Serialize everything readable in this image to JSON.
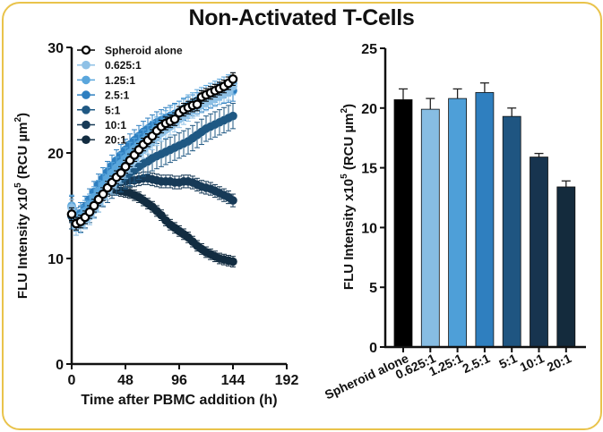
{
  "title": "Non-Activated T-Cells",
  "chart_data": [
    {
      "type": "line",
      "xlabel": "Time after PBMC addition (h)",
      "ylabel": "FLU Intensity x10^5 (RCU µm^2)",
      "ylabel_parts": {
        "main": "FLU Intensity x10",
        "exp": "5",
        "unit": " (RCU µm",
        "unit_exp": "2",
        "close": ")"
      },
      "xlim": [
        0,
        192
      ],
      "ylim": [
        0,
        30
      ],
      "xticks": [
        "0",
        "48",
        "96",
        "144",
        "192"
      ],
      "yticks": [
        "0",
        "10",
        "20",
        "30"
      ],
      "legend_position": "top-left",
      "x": [
        0,
        4,
        8,
        12,
        16,
        20,
        24,
        28,
        32,
        36,
        40,
        44,
        48,
        52,
        56,
        60,
        64,
        68,
        72,
        76,
        80,
        84,
        88,
        92,
        96,
        100,
        104,
        108,
        112,
        116,
        120,
        124,
        128,
        132,
        136,
        140,
        144
      ],
      "series": [
        {
          "name": "Spheroid alone",
          "color": "#000000",
          "marker": "open-circle",
          "error": 0.6,
          "values": [
            14.2,
            13.3,
            13.5,
            13.9,
            14.4,
            15.0,
            15.6,
            16.1,
            16.7,
            17.2,
            17.7,
            18.1,
            18.7,
            19.3,
            19.8,
            20.3,
            20.8,
            21.2,
            21.6,
            22.1,
            22.5,
            22.8,
            23.0,
            23.2,
            23.8,
            24.1,
            24.3,
            24.5,
            24.6,
            25.3,
            25.5,
            25.7,
            25.9,
            26.1,
            26.3,
            26.6,
            27.0
          ]
        },
        {
          "name": "0.625:1",
          "color": "#8fc1e6",
          "marker": "filled-circle",
          "error": 0.8,
          "values": [
            14.8,
            13.0,
            13.2,
            13.6,
            14.0,
            14.6,
            15.2,
            15.8,
            16.4,
            16.9,
            17.4,
            17.9,
            18.4,
            18.9,
            19.4,
            19.9,
            20.3,
            20.7,
            21.1,
            21.5,
            21.9,
            22.2,
            22.5,
            22.8,
            23.2,
            23.5,
            23.8,
            24.1,
            24.3,
            24.6,
            24.8,
            25.0,
            25.2,
            25.4,
            25.6,
            25.8,
            26.3
          ]
        },
        {
          "name": "1.25:1",
          "color": "#5aa6dc",
          "marker": "filled-circle",
          "error": 1.0,
          "values": [
            15.0,
            13.6,
            14.0,
            14.5,
            15.1,
            15.8,
            16.4,
            17.0,
            17.6,
            18.1,
            18.6,
            19.0,
            19.5,
            20.0,
            20.4,
            20.8,
            21.2,
            21.6,
            22.0,
            22.4,
            22.7,
            23.0,
            23.3,
            23.6,
            23.9,
            24.2,
            24.5,
            24.7,
            25.0,
            25.2,
            25.4,
            25.6,
            25.8,
            26.0,
            26.2,
            26.4,
            26.6
          ]
        },
        {
          "name": "2.5:1",
          "color": "#2e7fc0",
          "marker": "filled-circle",
          "error": 1.0,
          "values": [
            14.9,
            13.8,
            14.3,
            14.9,
            15.6,
            16.3,
            17.0,
            17.6,
            18.2,
            18.8,
            19.3,
            19.8,
            20.3,
            20.8,
            21.2,
            21.6,
            22.0,
            22.3,
            22.6,
            22.9,
            23.1,
            23.3,
            23.5,
            23.7,
            23.9,
            24.1,
            24.3,
            24.5,
            24.7,
            24.9,
            25.1,
            25.3,
            25.5,
            25.6,
            25.7,
            25.8,
            25.9
          ]
        },
        {
          "name": "5:1",
          "color": "#1f5883",
          "marker": "filled-circle",
          "error": 1.2,
          "values": [
            14.0,
            13.4,
            13.7,
            14.1,
            14.6,
            15.1,
            15.6,
            16.1,
            16.5,
            16.9,
            17.2,
            17.5,
            17.8,
            18.1,
            18.4,
            18.7,
            19.0,
            19.2,
            19.5,
            19.7,
            19.9,
            20.1,
            20.3,
            20.5,
            20.7,
            20.9,
            21.1,
            21.4,
            21.7,
            22.0,
            22.3,
            22.5,
            22.7,
            22.9,
            23.1,
            23.3,
            23.5
          ]
        },
        {
          "name": "10:1",
          "color": "#173a57",
          "marker": "filled-circle",
          "error": 0.6,
          "values": [
            14.0,
            13.2,
            13.5,
            14.0,
            14.6,
            15.2,
            15.8,
            16.3,
            16.7,
            17.0,
            17.2,
            17.3,
            17.3,
            17.4,
            17.4,
            17.5,
            17.6,
            17.6,
            17.5,
            17.4,
            17.3,
            17.3,
            17.3,
            17.2,
            17.2,
            17.3,
            17.3,
            17.2,
            17.0,
            16.8,
            16.7,
            16.6,
            16.4,
            16.2,
            16.0,
            15.8,
            15.5
          ]
        },
        {
          "name": "20:1",
          "color": "#122c40",
          "marker": "filled-circle",
          "error": 0.5,
          "values": [
            14.0,
            13.2,
            13.5,
            14.0,
            14.6,
            15.2,
            15.7,
            16.1,
            16.4,
            16.5,
            16.5,
            16.4,
            16.3,
            16.2,
            16.0,
            15.8,
            15.5,
            15.2,
            14.9,
            14.5,
            14.1,
            13.6,
            13.2,
            12.9,
            12.6,
            12.3,
            12.0,
            11.6,
            11.2,
            10.9,
            10.6,
            10.4,
            10.2,
            10.0,
            9.9,
            9.8,
            9.7
          ]
        }
      ]
    },
    {
      "type": "bar",
      "ylabel": "FLU Intensity x10^5 (RCU µm^2)",
      "ylabel_parts": {
        "main": "FLU Intensity x10",
        "exp": "5",
        "unit": " (RCU µm",
        "unit_exp": "2",
        "close": ")"
      },
      "ylim": [
        0,
        25
      ],
      "yticks": [
        "0",
        "5",
        "10",
        "15",
        "20",
        "25"
      ],
      "categories": [
        "Spheroid alone",
        "0.625:1",
        "1.25:1",
        "2.5:1",
        "5:1",
        "10:1",
        "20:1"
      ],
      "values": [
        20.7,
        19.9,
        20.8,
        21.3,
        19.3,
        15.9,
        13.4
      ],
      "errors": [
        0.9,
        0.9,
        0.8,
        0.8,
        0.7,
        0.3,
        0.5
      ],
      "colors": [
        "#000000",
        "#87bde3",
        "#4e9fd8",
        "#2f7fbf",
        "#1f5581",
        "#17344f",
        "#142b3d"
      ]
    }
  ]
}
